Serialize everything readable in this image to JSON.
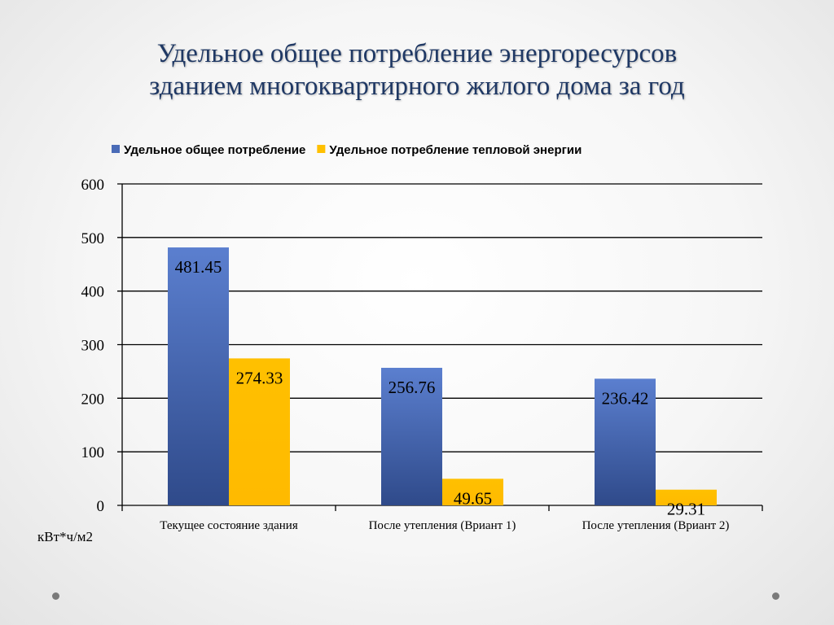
{
  "title_lines": [
    "Удельное общее потребление энергоресурсов",
    "зданием многоквартирного жилого дома за год"
  ],
  "unit_label": "кВт*ч/м2",
  "chart_data": {
    "type": "bar",
    "categories": [
      "Текущее состояние здания",
      "После утепления (Вриант 1)",
      "После утепления (Вриант 2)"
    ],
    "series": [
      {
        "name": "Удельное общее потребление",
        "values": [
          481.45,
          256.76,
          236.42
        ],
        "color": "#4a6bb7"
      },
      {
        "name": "Удельное потребление тепловой энергии",
        "values": [
          274.33,
          49.65,
          29.31
        ],
        "color": "#ffc000"
      }
    ],
    "y_ticks": [
      0,
      100,
      200,
      300,
      400,
      500,
      600
    ],
    "ylim": [
      0,
      600
    ],
    "grid": true,
    "legend_position": "top",
    "data_labels": true
  }
}
